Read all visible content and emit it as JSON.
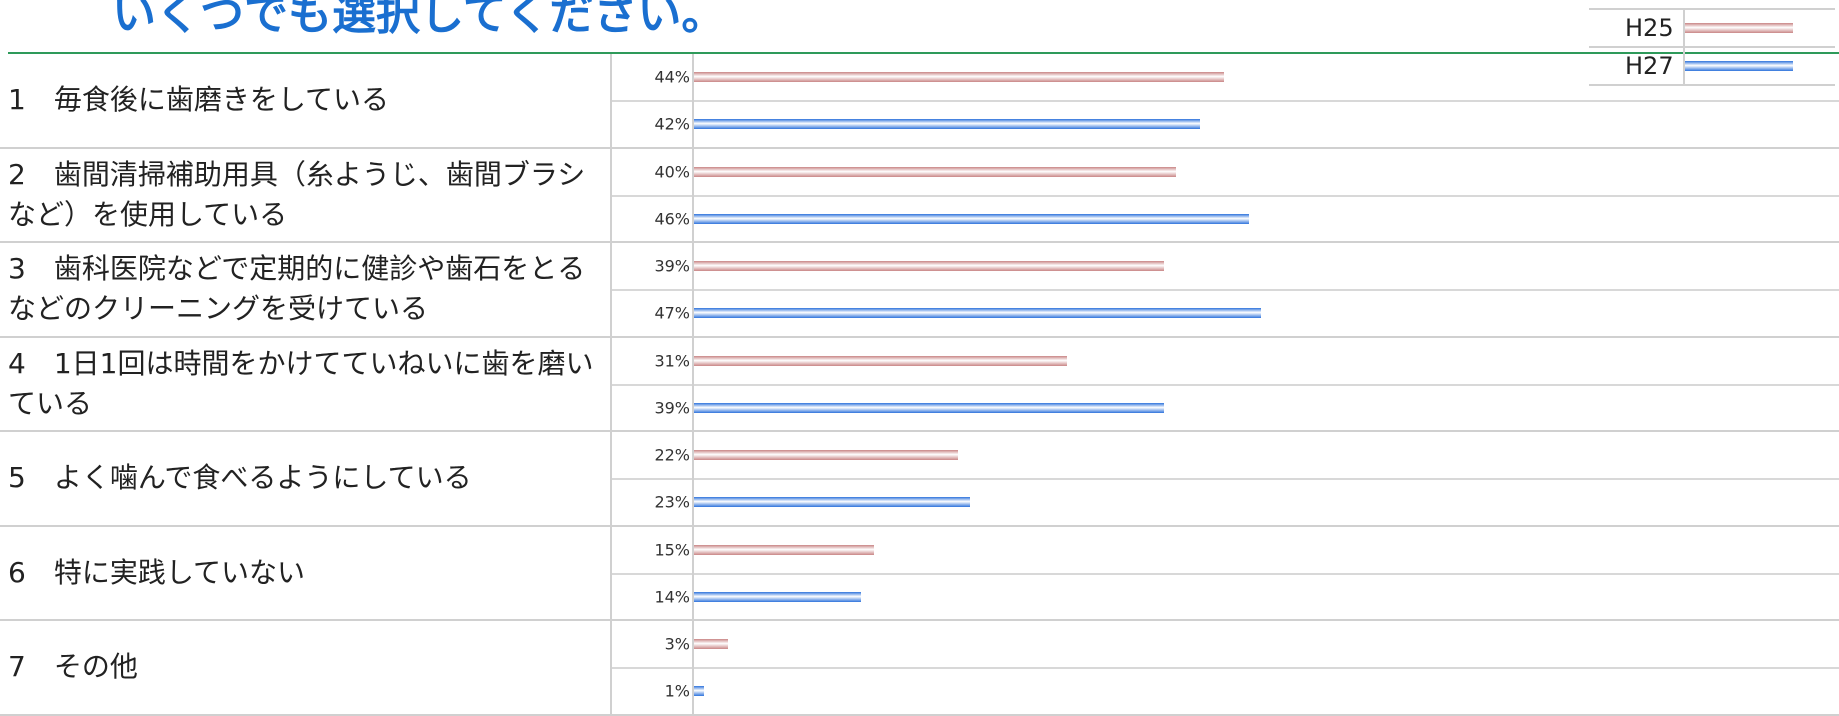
{
  "title": "いくつでも選択してください。",
  "legend": [
    {
      "name": "H25",
      "color": "#c98686"
    },
    {
      "name": "H27",
      "color": "#2f74dc"
    }
  ],
  "rows": [
    {
      "label": "1　毎食後に歯磨きをしている",
      "values": [
        44,
        42
      ],
      "value_labels": [
        "44%",
        "42%"
      ]
    },
    {
      "label": "2　歯間清掃補助用具（糸ようじ、歯間ブラシなど）を使用している",
      "values": [
        40,
        46
      ],
      "value_labels": [
        "40%",
        "46%"
      ]
    },
    {
      "label": "3　歯科医院などで定期的に健診や歯石をとるなどのクリーニングを受けている",
      "values": [
        39,
        47
      ],
      "value_labels": [
        "39%",
        "47%"
      ]
    },
    {
      "label": "4　1日1回は時間をかけてていねいに歯を磨いている",
      "values": [
        31,
        39
      ],
      "value_labels": [
        "31%",
        "39%"
      ]
    },
    {
      "label": "5　よく噛んで食べるようにしている",
      "values": [
        22,
        23
      ],
      "value_labels": [
        "22%",
        "23%"
      ]
    },
    {
      "label": "6　特に実践していない",
      "values": [
        15,
        14
      ],
      "value_labels": [
        "15%",
        "14%"
      ]
    },
    {
      "label": "7　その他",
      "values": [
        3,
        1
      ],
      "value_labels": [
        "3%",
        "1%"
      ]
    }
  ]
}
